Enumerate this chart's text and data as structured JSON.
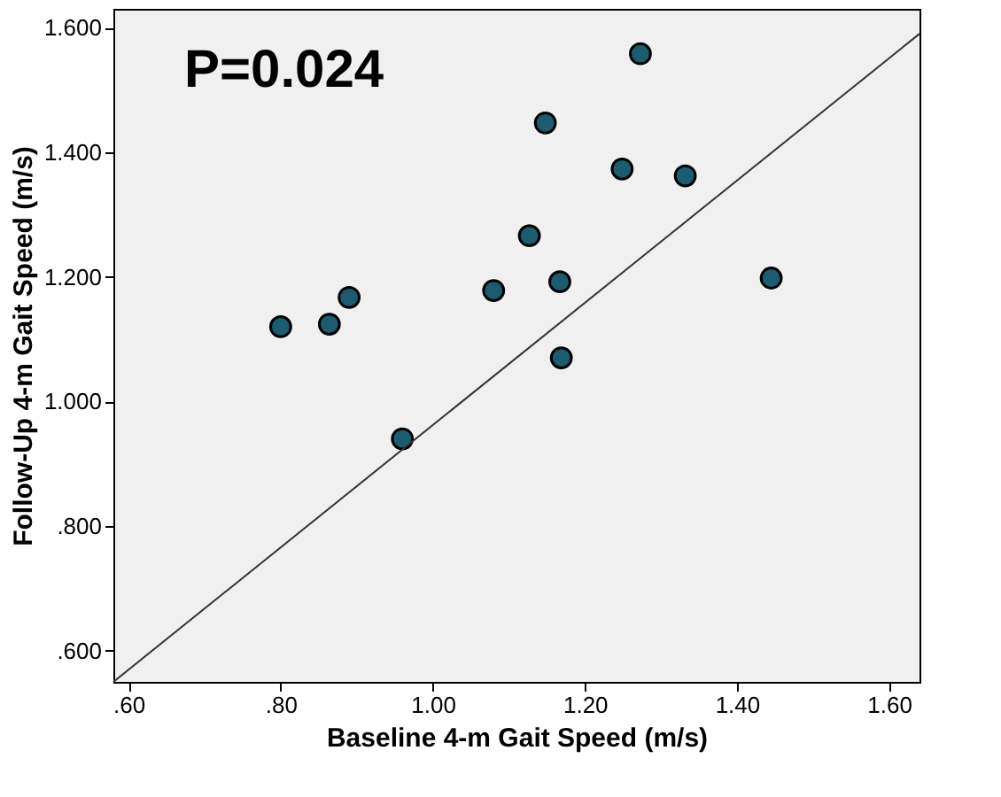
{
  "chart_data": {
    "type": "scatter",
    "xlabel": "Baseline 4-m Gait Speed (m/s)",
    "ylabel": "Follow-Up 4-m Gait Speed (m/s)",
    "annotations": [
      "P=0.024"
    ],
    "xlim": [
      0.58,
      1.64
    ],
    "ylim": [
      0.55,
      1.63
    ],
    "xticks": [
      {
        "value": 0.6,
        "label": ".60"
      },
      {
        "value": 0.8,
        "label": ".80"
      },
      {
        "value": 1.0,
        "label": "1.00"
      },
      {
        "value": 1.2,
        "label": "1.20"
      },
      {
        "value": 1.4,
        "label": "1.40"
      },
      {
        "value": 1.6,
        "label": "1.60"
      }
    ],
    "yticks": [
      {
        "value": 0.6,
        "label": ".600"
      },
      {
        "value": 0.8,
        "label": ".800"
      },
      {
        "value": 1.0,
        "label": "1.000"
      },
      {
        "value": 1.2,
        "label": "1.200"
      },
      {
        "value": 1.4,
        "label": "1.400"
      },
      {
        "value": 1.6,
        "label": "1.600"
      }
    ],
    "grid": false,
    "series": [
      {
        "marker": "circle",
        "color": "#1d5c70",
        "x": [
          0.8,
          0.864,
          0.89,
          0.96,
          1.08,
          1.127,
          1.148,
          1.167,
          1.169,
          1.249,
          1.273,
          1.332,
          1.445
        ],
        "values": [
          1.12,
          1.124,
          1.167,
          0.94,
          1.178,
          1.266,
          1.447,
          1.192,
          1.07,
          1.373,
          1.558,
          1.362,
          1.198
        ]
      },
      {
        "type": "line",
        "color": "#333333",
        "x": [
          0.58,
          1.64
        ],
        "values": [
          0.55,
          1.59
        ]
      }
    ]
  }
}
